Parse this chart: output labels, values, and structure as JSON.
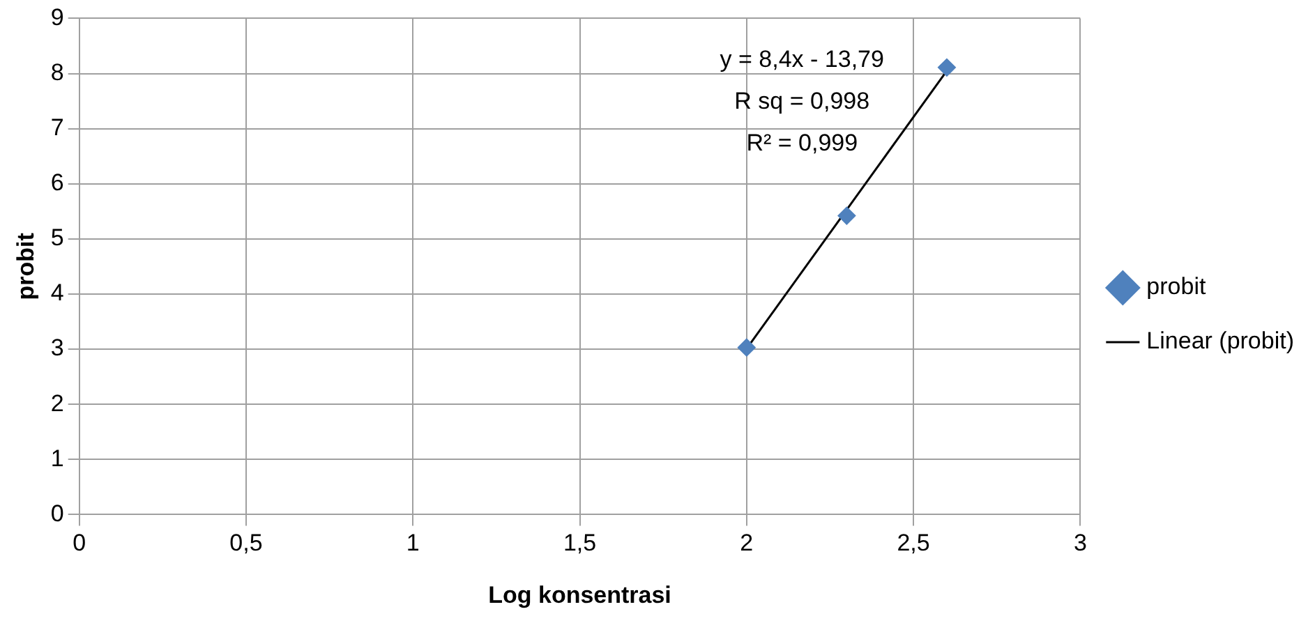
{
  "chart_data": {
    "type": "scatter",
    "xlabel": "Log konsentrasi",
    "ylabel": "probit",
    "x": [
      2,
      2.3,
      2.6
    ],
    "series": [
      {
        "name": "probit",
        "color": "#4f81bd",
        "values": [
          3.03,
          5.42,
          8.11
        ],
        "marker": "diamond"
      },
      {
        "name": "Linear (probit)",
        "type": "line",
        "color": "#000000",
        "x": [
          2,
          2.6
        ],
        "values": [
          3.01,
          8.05
        ],
        "marker": "none"
      }
    ],
    "xlim": [
      0,
      3
    ],
    "xticks": [
      0,
      {
        "value": 0.5,
        "label": "0,5"
      },
      1,
      {
        "value": 1.5,
        "label": "1,5"
      },
      2,
      {
        "value": 2.5,
        "label": "2,5"
      },
      3
    ],
    "ylim": [
      0,
      9
    ],
    "yticks": [
      0,
      1,
      2,
      3,
      4,
      5,
      6,
      7,
      8,
      9
    ],
    "grid": true,
    "legend": "right",
    "annotations": [
      "y = 8,4x - 13,79",
      "R sq = 0,998",
      "R² = 0,999"
    ]
  }
}
